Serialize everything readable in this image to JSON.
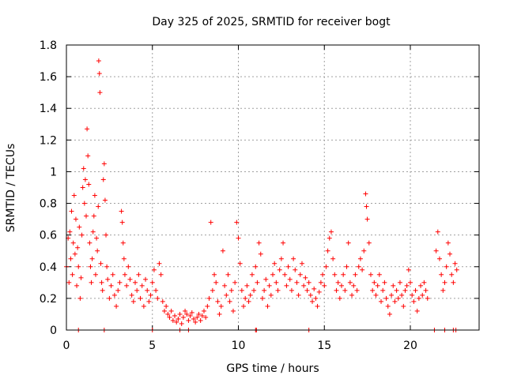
{
  "chart_data": {
    "type": "scatter",
    "title": "Day 325 of 2025, SRMTID for receiver bogt",
    "xlabel": "GPS time / hours",
    "ylabel": "SRMTID / TECUs",
    "xlim": [
      0,
      24
    ],
    "ylim": [
      0,
      1.8
    ],
    "xticks": [
      0,
      5,
      10,
      15,
      20
    ],
    "xtick_labels": [
      "0",
      "5",
      "10",
      "15",
      "20"
    ],
    "yticks": [
      0,
      0.2,
      0.4,
      0.6,
      0.8,
      1,
      1.2,
      1.4,
      1.6,
      1.8
    ],
    "ytick_labels": [
      "0",
      "0.2",
      "0.4",
      "0.6",
      "0.8",
      "1",
      "1.2",
      "1.4",
      "1.6",
      "1.8"
    ],
    "grid": true,
    "marker": "+",
    "color": "#ff0000",
    "series": [
      {
        "name": "SRMTID",
        "points": [
          [
            0.0,
            0.4
          ],
          [
            0.1,
            0.58
          ],
          [
            0.15,
            0.3
          ],
          [
            0.2,
            0.62
          ],
          [
            0.25,
            0.45
          ],
          [
            0.3,
            0.75
          ],
          [
            0.35,
            0.35
          ],
          [
            0.4,
            0.55
          ],
          [
            0.45,
            0.85
          ],
          [
            0.5,
            0.48
          ],
          [
            0.55,
            0.7
          ],
          [
            0.6,
            0.28
          ],
          [
            0.65,
            0.52
          ],
          [
            0.7,
            0.4
          ],
          [
            0.75,
            0.65
          ],
          [
            0.8,
            0.2
          ],
          [
            0.85,
            0.33
          ],
          [
            0.9,
            0.6
          ],
          [
            0.95,
            0.9
          ],
          [
            1.0,
            1.02
          ],
          [
            1.05,
            0.8
          ],
          [
            1.1,
            0.95
          ],
          [
            1.15,
            0.72
          ],
          [
            1.2,
            1.27
          ],
          [
            1.25,
            1.1
          ],
          [
            1.3,
            0.92
          ],
          [
            1.35,
            0.55
          ],
          [
            1.4,
            0.4
          ],
          [
            1.45,
            0.3
          ],
          [
            1.5,
            0.45
          ],
          [
            1.55,
            0.62
          ],
          [
            1.6,
            0.72
          ],
          [
            1.65,
            0.85
          ],
          [
            1.7,
            0.35
          ],
          [
            1.75,
            0.58
          ],
          [
            1.8,
            0.5
          ],
          [
            1.85,
            0.78
          ],
          [
            1.88,
            1.7
          ],
          [
            1.92,
            1.62
          ],
          [
            1.95,
            1.5
          ],
          [
            2.0,
            0.42
          ],
          [
            2.05,
            0.3
          ],
          [
            2.1,
            0.25
          ],
          [
            2.15,
            0.95
          ],
          [
            2.2,
            1.05
          ],
          [
            2.25,
            0.82
          ],
          [
            2.3,
            0.6
          ],
          [
            2.35,
            0.4
          ],
          [
            2.4,
            0.32
          ],
          [
            2.5,
            0.2
          ],
          [
            2.6,
            0.28
          ],
          [
            2.7,
            0.35
          ],
          [
            2.8,
            0.22
          ],
          [
            2.9,
            0.15
          ],
          [
            3.0,
            0.25
          ],
          [
            3.1,
            0.3
          ],
          [
            3.2,
            0.75
          ],
          [
            3.25,
            0.68
          ],
          [
            3.3,
            0.55
          ],
          [
            3.35,
            0.45
          ],
          [
            3.4,
            0.35
          ],
          [
            3.5,
            0.28
          ],
          [
            3.6,
            0.4
          ],
          [
            3.7,
            0.32
          ],
          [
            3.8,
            0.22
          ],
          [
            3.9,
            0.18
          ],
          [
            4.0,
            0.3
          ],
          [
            4.1,
            0.25
          ],
          [
            4.2,
            0.35
          ],
          [
            4.3,
            0.2
          ],
          [
            4.4,
            0.28
          ],
          [
            4.5,
            0.15
          ],
          [
            4.6,
            0.32
          ],
          [
            4.7,
            0.25
          ],
          [
            4.8,
            0.18
          ],
          [
            4.9,
            0.22
          ],
          [
            5.0,
            0.3
          ],
          [
            5.1,
            0.38
          ],
          [
            5.2,
            0.25
          ],
          [
            5.3,
            0.2
          ],
          [
            5.4,
            0.42
          ],
          [
            5.5,
            0.35
          ],
          [
            5.6,
            0.18
          ],
          [
            5.7,
            0.12
          ],
          [
            5.8,
            0.15
          ],
          [
            5.9,
            0.1
          ],
          [
            6.0,
            0.08
          ],
          [
            6.1,
            0.12
          ],
          [
            6.2,
            0.06
          ],
          [
            6.3,
            0.09
          ],
          [
            6.4,
            0.05
          ],
          [
            6.5,
            0.07
          ],
          [
            6.6,
            0.1
          ],
          [
            6.7,
            0.04
          ],
          [
            6.8,
            0.08
          ],
          [
            6.9,
            0.12
          ],
          [
            7.0,
            0.1
          ],
          [
            7.1,
            0.06
          ],
          [
            7.2,
            0.09
          ],
          [
            7.3,
            0.11
          ],
          [
            7.4,
            0.07
          ],
          [
            7.5,
            0.05
          ],
          [
            7.6,
            0.08
          ],
          [
            7.7,
            0.1
          ],
          [
            7.8,
            0.06
          ],
          [
            7.9,
            0.09
          ],
          [
            8.0,
            0.12
          ],
          [
            8.1,
            0.08
          ],
          [
            8.2,
            0.15
          ],
          [
            8.3,
            0.2
          ],
          [
            8.4,
            0.68
          ],
          [
            8.5,
            0.25
          ],
          [
            8.6,
            0.35
          ],
          [
            8.7,
            0.3
          ],
          [
            8.8,
            0.18
          ],
          [
            8.9,
            0.1
          ],
          [
            9.0,
            0.15
          ],
          [
            9.1,
            0.5
          ],
          [
            9.2,
            0.28
          ],
          [
            9.3,
            0.22
          ],
          [
            9.4,
            0.35
          ],
          [
            9.5,
            0.18
          ],
          [
            9.6,
            0.25
          ],
          [
            9.7,
            0.12
          ],
          [
            9.8,
            0.3
          ],
          [
            9.9,
            0.68
          ],
          [
            10.0,
            0.58
          ],
          [
            10.1,
            0.42
          ],
          [
            10.2,
            0.25
          ],
          [
            10.3,
            0.15
          ],
          [
            10.4,
            0.2
          ],
          [
            10.5,
            0.28
          ],
          [
            10.6,
            0.18
          ],
          [
            10.7,
            0.22
          ],
          [
            10.8,
            0.35
          ],
          [
            10.9,
            0.25
          ],
          [
            11.0,
            0.4
          ],
          [
            11.1,
            0.3
          ],
          [
            11.2,
            0.55
          ],
          [
            11.3,
            0.48
          ],
          [
            11.4,
            0.2
          ],
          [
            11.5,
            0.25
          ],
          [
            11.6,
            0.32
          ],
          [
            11.7,
            0.15
          ],
          [
            11.8,
            0.28
          ],
          [
            11.9,
            0.22
          ],
          [
            12.0,
            0.35
          ],
          [
            12.1,
            0.42
          ],
          [
            12.2,
            0.3
          ],
          [
            12.3,
            0.25
          ],
          [
            12.4,
            0.38
          ],
          [
            12.5,
            0.45
          ],
          [
            12.6,
            0.55
          ],
          [
            12.7,
            0.35
          ],
          [
            12.8,
            0.28
          ],
          [
            12.9,
            0.4
          ],
          [
            13.0,
            0.32
          ],
          [
            13.1,
            0.25
          ],
          [
            13.2,
            0.45
          ],
          [
            13.3,
            0.38
          ],
          [
            13.4,
            0.3
          ],
          [
            13.5,
            0.22
          ],
          [
            13.6,
            0.35
          ],
          [
            13.7,
            0.42
          ],
          [
            13.8,
            0.28
          ],
          [
            13.9,
            0.33
          ],
          [
            14.0,
            0.25
          ],
          [
            14.1,
            0.3
          ],
          [
            14.2,
            0.22
          ],
          [
            14.3,
            0.18
          ],
          [
            14.4,
            0.26
          ],
          [
            14.5,
            0.2
          ],
          [
            14.6,
            0.15
          ],
          [
            14.7,
            0.24
          ],
          [
            14.8,
            0.3
          ],
          [
            14.9,
            0.35
          ],
          [
            15.0,
            0.28
          ],
          [
            15.1,
            0.4
          ],
          [
            15.2,
            0.5
          ],
          [
            15.3,
            0.58
          ],
          [
            15.4,
            0.62
          ],
          [
            15.5,
            0.45
          ],
          [
            15.6,
            0.35
          ],
          [
            15.7,
            0.25
          ],
          [
            15.8,
            0.3
          ],
          [
            15.9,
            0.2
          ],
          [
            16.0,
            0.28
          ],
          [
            16.1,
            0.35
          ],
          [
            16.2,
            0.25
          ],
          [
            16.3,
            0.4
          ],
          [
            16.4,
            0.55
          ],
          [
            16.5,
            0.3
          ],
          [
            16.6,
            0.22
          ],
          [
            16.7,
            0.28
          ],
          [
            16.8,
            0.35
          ],
          [
            16.9,
            0.25
          ],
          [
            17.0,
            0.4
          ],
          [
            17.1,
            0.45
          ],
          [
            17.2,
            0.38
          ],
          [
            17.3,
            0.5
          ],
          [
            17.4,
            0.86
          ],
          [
            17.45,
            0.78
          ],
          [
            17.5,
            0.7
          ],
          [
            17.6,
            0.55
          ],
          [
            17.7,
            0.35
          ],
          [
            17.8,
            0.25
          ],
          [
            17.9,
            0.3
          ],
          [
            18.0,
            0.22
          ],
          [
            18.1,
            0.28
          ],
          [
            18.2,
            0.35
          ],
          [
            18.3,
            0.18
          ],
          [
            18.4,
            0.25
          ],
          [
            18.5,
            0.3
          ],
          [
            18.6,
            0.2
          ],
          [
            18.7,
            0.15
          ],
          [
            18.8,
            0.1
          ],
          [
            18.9,
            0.22
          ],
          [
            19.0,
            0.28
          ],
          [
            19.1,
            0.18
          ],
          [
            19.2,
            0.25
          ],
          [
            19.3,
            0.2
          ],
          [
            19.4,
            0.3
          ],
          [
            19.5,
            0.22
          ],
          [
            19.6,
            0.15
          ],
          [
            19.7,
            0.25
          ],
          [
            19.8,
            0.28
          ],
          [
            19.9,
            0.38
          ],
          [
            20.0,
            0.3
          ],
          [
            20.1,
            0.22
          ],
          [
            20.2,
            0.18
          ],
          [
            20.3,
            0.25
          ],
          [
            20.4,
            0.12
          ],
          [
            20.5,
            0.2
          ],
          [
            20.6,
            0.28
          ],
          [
            20.7,
            0.22
          ],
          [
            20.8,
            0.3
          ],
          [
            20.9,
            0.25
          ],
          [
            21.0,
            0.2
          ],
          [
            21.5,
            0.5
          ],
          [
            21.6,
            0.62
          ],
          [
            21.7,
            0.45
          ],
          [
            21.8,
            0.35
          ],
          [
            21.9,
            0.25
          ],
          [
            22.0,
            0.3
          ],
          [
            22.1,
            0.4
          ],
          [
            22.2,
            0.55
          ],
          [
            22.3,
            0.48
          ],
          [
            22.4,
            0.35
          ],
          [
            22.5,
            0.3
          ],
          [
            22.6,
            0.42
          ],
          [
            22.7,
            0.38
          ]
        ]
      }
    ],
    "zero_points_x": [
      0.7,
      2.2,
      5.0,
      6.6,
      7.1,
      11.0,
      11.05,
      14.1,
      21.4,
      22.0,
      22.5,
      22.65
    ]
  }
}
